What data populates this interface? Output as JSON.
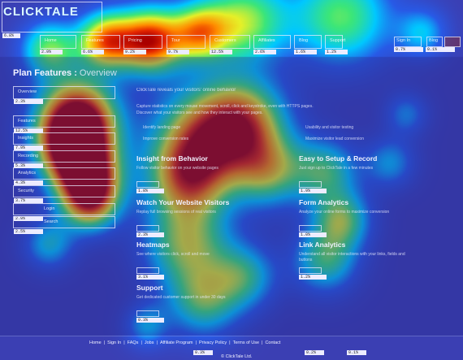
{
  "logo": {
    "text": "CLICKTALE",
    "pct": "6.8%"
  },
  "nav": {
    "items": [
      {
        "label": "Home",
        "pct": "2.9%"
      },
      {
        "label": "Features",
        "pct": "6.6%"
      },
      {
        "label": "Pricing",
        "pct": "9.2%"
      },
      {
        "label": "Tour",
        "pct": "9.7%"
      },
      {
        "label": "Customers",
        "pct": "12.5%"
      },
      {
        "label": "Affiliates",
        "pct": "2.6%"
      },
      {
        "label": "Blog",
        "pct": "1.6%"
      },
      {
        "label": "Support",
        "pct": "1.2%"
      }
    ],
    "login": {
      "label": "Sign In",
      "pct": "0.7%"
    },
    "blog_btn": {
      "label": "Blog",
      "pct": "0.1%"
    }
  },
  "page_title": "Plan Features :",
  "page_title_sub": "Overview",
  "sidebar": {
    "items": [
      {
        "label": "Overview",
        "pct": "2.3%"
      },
      {
        "label": "Features",
        "pct": "12.5%"
      },
      {
        "label": "Insights",
        "pct": "7.9%"
      },
      {
        "label": "Recording",
        "pct": "5.3%"
      },
      {
        "label": "Analytics",
        "pct": "4.3%"
      },
      {
        "label": "Security",
        "pct": "3.7%"
      },
      {
        "label": "Login",
        "pct": "2.9%"
      },
      {
        "label": "Search",
        "pct": "2.5%"
      }
    ]
  },
  "features": [
    {
      "title": "Insight from Behavior",
      "pct": "1.8%"
    },
    {
      "title": "Easy to Setup & Record",
      "pct": "1.9%"
    },
    {
      "title": "Watch Your Website Visitors",
      "pct": "2.3%"
    },
    {
      "title": "Form Analytics",
      "pct": "1.0%"
    },
    {
      "title": "Heatmaps",
      "pct": "3.1%"
    },
    {
      "title": "Link Analytics",
      "pct": "1.2%"
    },
    {
      "title": "Support",
      "pct": "0.3%"
    }
  ],
  "intro_text": "ClickTale reveals your visitors' online behavior",
  "intro_body_1": "Capture statistics on every mouse movement, scroll, click and keystroke, even with HTTPS pages.",
  "intro_body_2": "Discover what your visitors see and how they interact with your pages.",
  "bullets": [
    "Identify landing page",
    "Improve conversion rates",
    "Usability and visitor testing",
    "Maximize visitor lead conversion"
  ],
  "desc": {
    "insight": "Follow visitor behavior on your website pages",
    "easy": "Just sign up to ClickTale in a few minutes",
    "watch": "Replay full browsing sessions of real visitors",
    "form": "Analyze your online forms to maximize conversion",
    "heatmaps": "See where visitors click, scroll and move",
    "link": "Understand all visitor interactions with your links, fields and buttons",
    "support": "Get dedicated customer support in under 30 days"
  },
  "footer": {
    "links": [
      "Home",
      "Sign In",
      "FAQs",
      "Jobs",
      "Affiliate Program",
      "Privacy Policy",
      "Terms of Use",
      "Contact"
    ],
    "pcts": [
      "0.3%",
      "0.2%",
      "0.1%"
    ],
    "copyright": "© ClickTale Ltd."
  }
}
